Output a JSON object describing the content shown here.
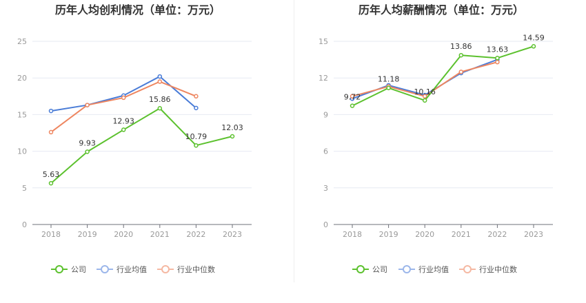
{
  "chart_data": [
    {
      "type": "line",
      "title": "历年人均创利情况（单位：万元）",
      "xlabel": "",
      "ylabel": "",
      "categories": [
        "2018",
        "2019",
        "2020",
        "2021",
        "2022",
        "2023"
      ],
      "ylim": [
        0,
        25
      ],
      "yticks": [
        0,
        5,
        10,
        15,
        20,
        25
      ],
      "grid": true,
      "legend_position": "bottom",
      "series": [
        {
          "name": "公司",
          "color": "#5cc12e",
          "values": [
            5.63,
            9.93,
            12.93,
            15.86,
            10.79,
            12.03
          ],
          "labels": [
            "5.63",
            "9.93",
            "12.93",
            "15.86",
            "10.79",
            "12.03"
          ]
        },
        {
          "name": "行业均值",
          "color": "#4a7cd7",
          "values": [
            15.5,
            16.3,
            17.6,
            20.2,
            15.9,
            null
          ],
          "labels": []
        },
        {
          "name": "行业中位数",
          "color": "#ee8660",
          "values": [
            12.6,
            16.3,
            17.3,
            19.5,
            17.5,
            null
          ],
          "labels": []
        }
      ]
    },
    {
      "type": "line",
      "title": "历年人均薪酬情况（单位：万元）",
      "xlabel": "",
      "ylabel": "",
      "categories": [
        "2018",
        "2019",
        "2020",
        "2021",
        "2022",
        "2023"
      ],
      "ylim": [
        0,
        15
      ],
      "yticks": [
        0,
        3,
        6,
        9,
        12,
        15
      ],
      "grid": true,
      "legend_position": "bottom",
      "series": [
        {
          "name": "公司",
          "color": "#5cc12e",
          "values": [
            9.72,
            11.18,
            10.16,
            13.86,
            13.63,
            14.59
          ],
          "labels": [
            "9.72",
            "11.18",
            "10.16",
            "13.86",
            "13.63",
            "14.59"
          ]
        },
        {
          "name": "行业均值",
          "color": "#4a7cd7",
          "values": [
            10.3,
            11.4,
            10.6,
            12.4,
            13.5,
            null
          ],
          "labels": []
        },
        {
          "name": "行业中位数",
          "color": "#ee8660",
          "values": [
            10.5,
            11.3,
            10.5,
            12.5,
            13.3,
            null
          ],
          "labels": []
        }
      ]
    }
  ]
}
